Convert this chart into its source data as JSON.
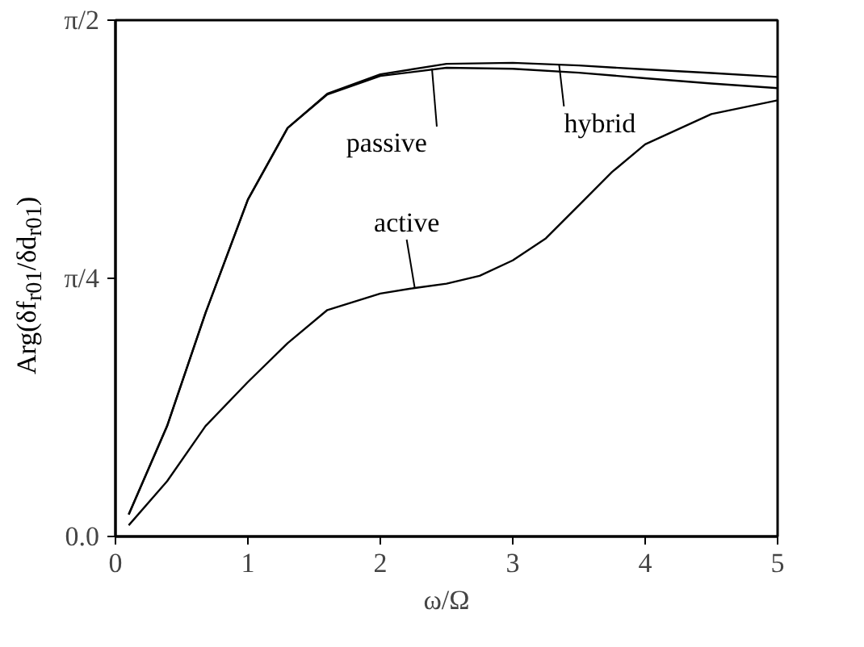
{
  "chart_data": {
    "type": "line",
    "xlabel": "ω/Ω",
    "ylabel": "Arg(δf$_{r01}$/δd$_{r01}$)",
    "xlim": [
      0,
      5
    ],
    "ylim": [
      0,
      1.5708
    ],
    "xticks": [
      0,
      1,
      2,
      3,
      4,
      5
    ],
    "yticks": [
      {
        "value": 0,
        "label": "0.0"
      },
      {
        "value": 0.7854,
        "label": "π/4"
      },
      {
        "value": 1.5708,
        "label": "π/2"
      }
    ],
    "grid": false,
    "marker": "none",
    "line_style": "solid",
    "series": [
      {
        "color": "#000000",
        "x": [
          0.1,
          0.39,
          0.68,
          1.0,
          1.3,
          1.6,
          2.0,
          2.5,
          3.0,
          3.5,
          4.0,
          4.5,
          5.0
        ],
        "values": [
          0.067,
          0.336,
          0.68,
          1.025,
          1.243,
          1.347,
          1.406,
          1.438,
          1.441,
          1.433,
          1.421,
          1.41,
          1.398
        ]
      },
      {
        "color": "#000000",
        "x": [
          0.1,
          0.39,
          0.68,
          1.0,
          1.3,
          1.6,
          2.0,
          2.5,
          3.0,
          3.5,
          4.0,
          4.5,
          5.0
        ],
        "values": [
          0.067,
          0.336,
          0.68,
          1.025,
          1.243,
          1.345,
          1.401,
          1.426,
          1.423,
          1.411,
          1.394,
          1.378,
          1.364
        ]
      },
      {
        "color": "#000000",
        "x": [
          0.1,
          0.39,
          0.68,
          1.0,
          1.3,
          1.6,
          2.0,
          2.26,
          2.5,
          2.75,
          3.0,
          3.25,
          3.5,
          3.75,
          4.0,
          4.5,
          5.0
        ],
        "values": [
          0.034,
          0.168,
          0.336,
          0.47,
          0.588,
          0.689,
          0.739,
          0.756,
          0.769,
          0.793,
          0.84,
          0.907,
          1.008,
          1.109,
          1.193,
          1.285,
          1.327
        ]
      }
    ],
    "annotations": [
      {
        "text": "hybrid",
        "x": 3.35,
        "y": 1.436
      },
      {
        "text": "passive",
        "x": 2.39,
        "y": 1.424
      },
      {
        "text": "active",
        "x": 2.26,
        "y": 0.756
      }
    ]
  }
}
